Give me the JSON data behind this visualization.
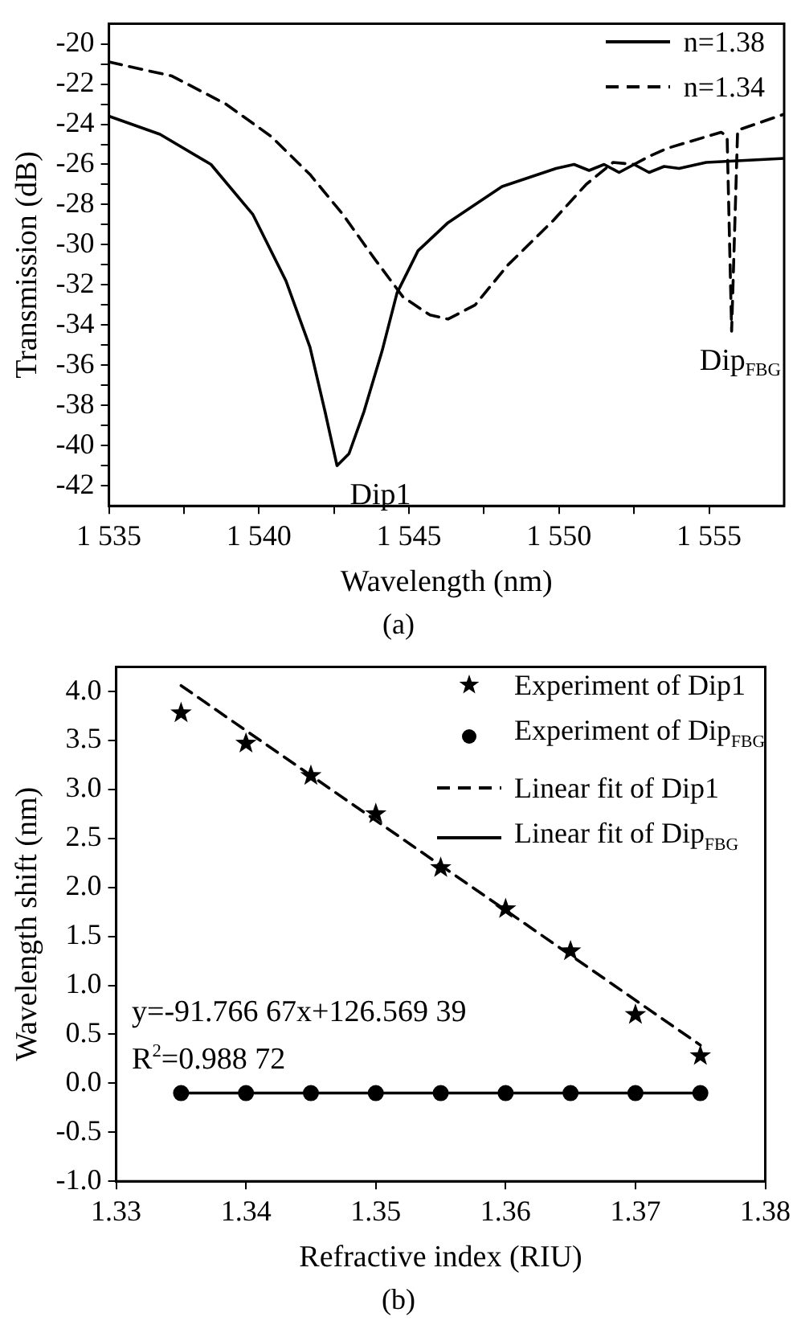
{
  "chart_data": [
    {
      "type": "line",
      "xlabel": "Wavelength (nm)",
      "ylabel": "Transmission (dB)",
      "xlim": [
        1535,
        1557.5
      ],
      "xticks": [
        {
          "value": 1535,
          "label": "1 535"
        },
        {
          "value": 1537.5,
          "label": null
        },
        {
          "value": 1540,
          "label": "1 540"
        },
        {
          "value": 1542.5,
          "label": null
        },
        {
          "value": 1545,
          "label": "1 545"
        },
        {
          "value": 1547.5,
          "label": null
        },
        {
          "value": 1550,
          "label": "1 550"
        },
        {
          "value": 1552.5,
          "label": null
        },
        {
          "value": 1555,
          "label": "1 555"
        }
      ],
      "ylim": [
        -43,
        -19
      ],
      "yticks": [
        -42,
        {
          "value": -41,
          "label": null
        },
        -40,
        {
          "value": -39,
          "label": null
        },
        -38,
        {
          "value": -37,
          "label": null
        },
        -36,
        {
          "value": -35,
          "label": null
        },
        -34,
        {
          "value": -33,
          "label": null
        },
        -32,
        {
          "value": -31,
          "label": null
        },
        -30,
        {
          "value": -29,
          "label": null
        },
        -28,
        {
          "value": -27,
          "label": null
        },
        -26,
        {
          "value": -25,
          "label": null
        },
        -24,
        {
          "value": -23,
          "label": null
        },
        -22,
        {
          "value": -21,
          "label": null
        },
        -20
      ],
      "legend": "top right",
      "marker": "none",
      "grid": false,
      "series": [
        {
          "name": "n=1.38",
          "color": "#000000",
          "line_style": "solid",
          "x": [
            1535,
            1536.7,
            1538.4,
            1539.8,
            1540.9,
            1541.7,
            1542.2,
            1542.6,
            1543,
            1543.5,
            1544.1,
            1544.6,
            1545.3,
            1546.3,
            1548.1,
            1549.9,
            1550.5,
            1551,
            1551.5,
            1552,
            1552.5,
            1553,
            1553.5,
            1554,
            1554.9,
            1557.5
          ],
          "values": [
            -23.6,
            -24.5,
            -26,
            -28.5,
            -31.8,
            -35.1,
            -38.3,
            -41,
            -40.4,
            -38.3,
            -35.3,
            -32.4,
            -30.3,
            -28.9,
            -27.1,
            -26.2,
            -26,
            -26.3,
            -26,
            -26.4,
            -26,
            -26.4,
            -26.1,
            -26.2,
            -25.9,
            -25.7
          ]
        },
        {
          "name": "n=1.34",
          "color": "#000000",
          "line_style": "dashed",
          "x": [
            1535,
            1537.1,
            1538.9,
            1540.4,
            1541.7,
            1542.8,
            1543.9,
            1544.8,
            1545.7,
            1546.3,
            1547.2,
            1548.3,
            1549.8,
            1550.9,
            1551.8,
            1552.5,
            1553,
            1553.6,
            1555.4,
            1555.6,
            1555.75,
            1555.95,
            1557.5
          ],
          "values": [
            -20.9,
            -21.6,
            -23,
            -24.6,
            -26.5,
            -28.5,
            -30.8,
            -32.6,
            -33.5,
            -33.7,
            -33,
            -31,
            -28.8,
            -27,
            -25.9,
            -26,
            -25.6,
            -25.2,
            -24.4,
            -24.6,
            -34.3,
            -24.3,
            -23.5
          ]
        }
      ],
      "annotations": [
        {
          "text": "Dip1",
          "x": 1542.6,
          "y": -41
        },
        {
          "text": "Dip$_{FBG}$",
          "x": 1555.75,
          "y": -34.3
        },
        "(a)"
      ]
    },
    {
      "type": "scatter",
      "xlabel": "Refractive index (RIU)",
      "ylabel": "Wavelength shift (nm)",
      "xlim": [
        1.33,
        1.38
      ],
      "xticks": [
        1.33,
        1.34,
        1.35,
        1.36,
        1.37,
        1.38
      ],
      "ylim": [
        -1,
        4.25
      ],
      "yticks": [
        {
          "value": -1,
          "label": "-1.0"
        },
        -0.5,
        {
          "value": 0,
          "label": "0.0"
        },
        0.5,
        {
          "value": 1,
          "label": "1.0"
        },
        1.5,
        {
          "value": 2,
          "label": "2.0"
        },
        2.5,
        {
          "value": 3,
          "label": "3.0"
        },
        3.5,
        {
          "value": 4,
          "label": "4.0"
        }
      ],
      "legend": "top right",
      "grid": false,
      "series": [
        {
          "name": "Experiment of Dip1",
          "type": "scatter",
          "marker": "star",
          "color": "#000000",
          "x": [
            1.335,
            1.34,
            1.345,
            1.35,
            1.355,
            1.36,
            1.365,
            1.37,
            1.375
          ],
          "values": [
            3.78,
            3.47,
            3.14,
            2.75,
            2.2,
            1.78,
            1.35,
            0.7,
            0.28
          ]
        },
        {
          "name": "Experiment of Dip$_{FBG}$",
          "type": "scatter",
          "marker": "circle",
          "color": "#000000",
          "x": [
            1.335,
            1.34,
            1.345,
            1.35,
            1.355,
            1.36,
            1.365,
            1.37,
            1.375
          ],
          "values": [
            -0.1,
            -0.1,
            -0.1,
            -0.1,
            -0.1,
            -0.1,
            -0.1,
            -0.1,
            -0.1
          ]
        },
        {
          "name": "Linear fit of Dip1",
          "type": "line",
          "marker": "none",
          "line_style": "dashed",
          "color": "#000000",
          "x": [
            1.335,
            1.375
          ],
          "values": [
            4.06,
            0.39
          ]
        },
        {
          "name": "Linear fit of Dip$_{FBG}$",
          "type": "line",
          "marker": "none",
          "line_style": "solid",
          "color": "#000000",
          "x": [
            1.335,
            1.375
          ],
          "values": [
            -0.1,
            -0.1
          ]
        }
      ],
      "annotations": [
        "y=-91.766 67x+126.569 39",
        "R$^{2}$=0.988 72",
        "(b)"
      ]
    }
  ]
}
